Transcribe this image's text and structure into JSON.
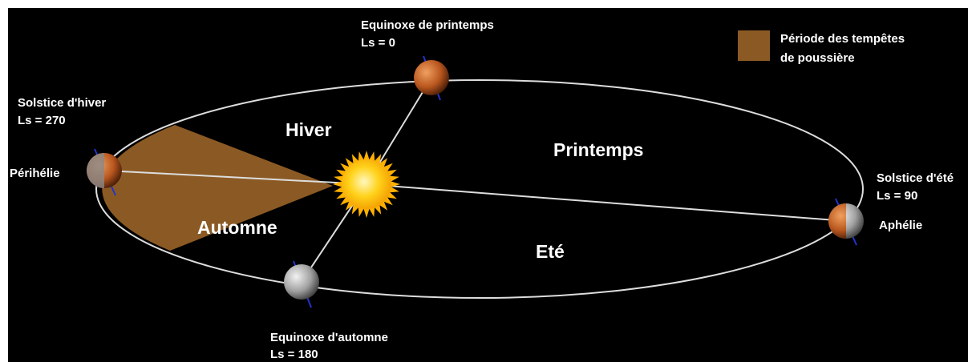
{
  "legend": {
    "label_lines": [
      "Période des tempêtes",
      "de poussière"
    ]
  },
  "seasons": {
    "winter": "Hiver",
    "spring": "Printemps",
    "autumn": "Automne",
    "summer": "Eté"
  },
  "points": {
    "spring_equinox": {
      "name": "Equinoxe de printemps",
      "ls": "Ls = 0"
    },
    "winter_solstice": {
      "name": "Solstice d'hiver",
      "ls": "Ls = 270"
    },
    "summer_solstice": {
      "name": "Solstice d'été",
      "ls": "Ls = 90"
    },
    "autumn_equinox": {
      "name": "Equinoxe d'automne",
      "ls": "Ls = 180"
    }
  },
  "perihelion": "Périhélie",
  "aphelion": "Aphélie"
}
